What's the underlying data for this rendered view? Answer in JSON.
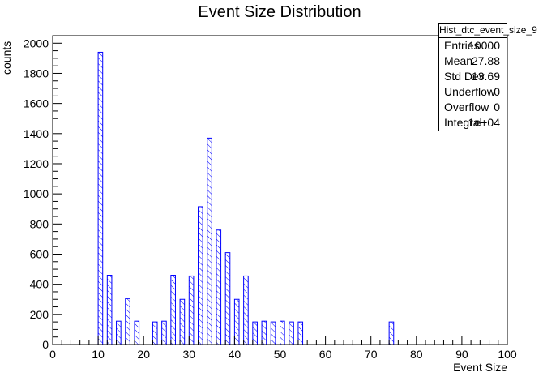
{
  "chart_data": {
    "type": "bar",
    "title": "Event Size Distribution",
    "xlabel": "Event Size",
    "ylabel": "counts",
    "xlim": [
      0,
      100
    ],
    "ylim": [
      0,
      2050
    ],
    "x_ticks": [
      "0",
      "10",
      "20",
      "30",
      "40",
      "50",
      "60",
      "70",
      "80",
      "90",
      "100"
    ],
    "y_ticks": [
      "0",
      "200",
      "400",
      "600",
      "800",
      "1000",
      "1200",
      "1400",
      "1600",
      "1800",
      "2000"
    ],
    "bin_width": 1,
    "bins": [
      {
        "x": 10,
        "value": 1940
      },
      {
        "x": 12,
        "value": 460
      },
      {
        "x": 14,
        "value": 155
      },
      {
        "x": 16,
        "value": 305
      },
      {
        "x": 18,
        "value": 155
      },
      {
        "x": 22,
        "value": 150
      },
      {
        "x": 24,
        "value": 155
      },
      {
        "x": 26,
        "value": 460
      },
      {
        "x": 28,
        "value": 300
      },
      {
        "x": 30,
        "value": 455
      },
      {
        "x": 32,
        "value": 915
      },
      {
        "x": 34,
        "value": 1370
      },
      {
        "x": 36,
        "value": 760
      },
      {
        "x": 38,
        "value": 610
      },
      {
        "x": 40,
        "value": 300
      },
      {
        "x": 42,
        "value": 455
      },
      {
        "x": 44,
        "value": 150
      },
      {
        "x": 46,
        "value": 155
      },
      {
        "x": 48,
        "value": 150
      },
      {
        "x": 50,
        "value": 155
      },
      {
        "x": 52,
        "value": 150
      },
      {
        "x": 54,
        "value": 150
      },
      {
        "x": 74,
        "value": 150
      }
    ],
    "color": "#0000ff",
    "grid": false,
    "stats_box": {
      "title": "Hist_dtc_event_size_9",
      "rows": [
        {
          "label": "Entries",
          "value": "10000"
        },
        {
          "label": "Mean",
          "value": "27.88"
        },
        {
          "label": "Std Dev",
          "value": "13.69"
        },
        {
          "label": "Underflow",
          "value": "0"
        },
        {
          "label": "Overflow",
          "value": "0"
        },
        {
          "label": "Integral",
          "value": "1e+04"
        }
      ]
    }
  }
}
